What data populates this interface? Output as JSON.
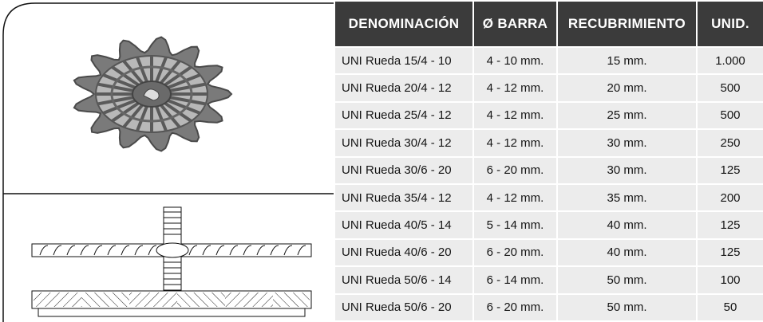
{
  "table": {
    "header": [
      "DENOMINACIÓN",
      "Ø BARRA",
      "RECUBRIMIENTO",
      "UNID."
    ],
    "rows": [
      [
        "UNI Rueda 15/4 - 10",
        "4 - 10 mm.",
        "15 mm.",
        "1.000"
      ],
      [
        "UNI Rueda 20/4 - 12",
        "4 - 12 mm.",
        "20 mm.",
        "500"
      ],
      [
        "UNI Rueda 25/4 - 12",
        "4 - 12 mm.",
        "25 mm.",
        "500"
      ],
      [
        "UNI Rueda 30/4 - 12",
        "4 - 12 mm.",
        "30 mm.",
        "250"
      ],
      [
        "UNI Rueda 30/6 - 20",
        "6 - 20 mm.",
        "30 mm.",
        "125"
      ],
      [
        "UNI Rueda 35/4 - 12",
        "4 - 12 mm.",
        "35 mm.",
        "200"
      ],
      [
        "UNI Rueda 40/5 - 14",
        "5 - 14 mm.",
        "40 mm.",
        "125"
      ],
      [
        "UNI Rueda 40/6 - 20",
        "6 - 20 mm.",
        "40 mm.",
        "125"
      ],
      [
        "UNI Rueda 50/6 - 14",
        "6 - 14 mm.",
        "50 mm.",
        "100"
      ],
      [
        "UNI Rueda 50/6 - 20",
        "6 - 20 mm.",
        "50 mm.",
        "50"
      ]
    ]
  }
}
